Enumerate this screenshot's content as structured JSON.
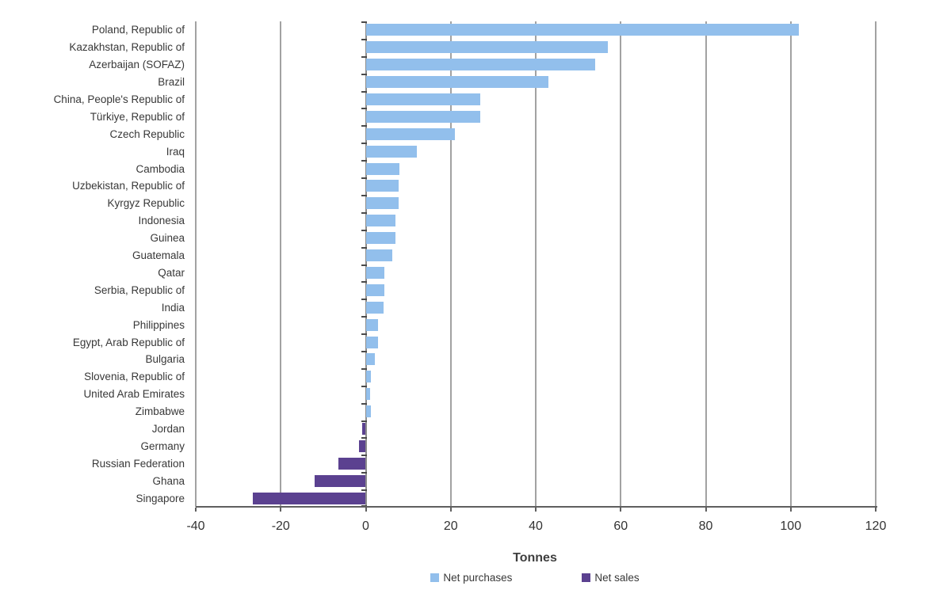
{
  "chart_data": {
    "type": "bar",
    "orientation": "horizontal",
    "title": "",
    "xlabel": "Tonnes",
    "ylabel": "",
    "xlim": [
      -40,
      120
    ],
    "x_ticks": [
      -40,
      -20,
      0,
      20,
      40,
      60,
      80,
      100,
      120
    ],
    "grid": "vertical gridlines at every x tick, drawn behind bars",
    "legend_position": "bottom-center",
    "categories": [
      "Poland, Republic of",
      "Kazakhstan, Republic of",
      "Azerbaijan (SOFAZ)",
      "Brazil",
      "China, People's Republic of",
      "Türkiye, Republic of",
      "Czech Republic",
      "Iraq",
      "Cambodia",
      "Uzbekistan, Republic of",
      "Kyrgyz Republic",
      "Indonesia",
      "Guinea",
      "Guatemala",
      "Qatar",
      "Serbia, Republic of",
      "India",
      "Philippines",
      "Egypt, Arab Republic of",
      "Bulgaria",
      "Slovenia, Republic of",
      "United Arab Emirates",
      "Zimbabwe",
      "Jordan",
      "Germany",
      "Russian Federation",
      "Ghana",
      "Singapore"
    ],
    "values": [
      102,
      57,
      54,
      43,
      27,
      27,
      21,
      12,
      8,
      7.8,
      7.8,
      7,
      6.9,
      6.2,
      4.4,
      4.3,
      4.2,
      2.9,
      2.9,
      2.2,
      1.2,
      1,
      1.2,
      -0.9,
      -1.5,
      -6.4,
      -12,
      -26.5
    ],
    "series_rule": "positive values shown as Net purchases (light blue), negative values shown as Net sales (purple)",
    "legend": [
      {
        "label": "Net purchases",
        "color": "#92bfec"
      },
      {
        "label": "Net sales",
        "color": "#5b4190"
      }
    ],
    "colors": {
      "net_purchases": "#92bfec",
      "net_sales": "#5b4190",
      "gridline": "#a2a2a2",
      "axis": "#5f5f5f",
      "text": "#383838"
    }
  }
}
